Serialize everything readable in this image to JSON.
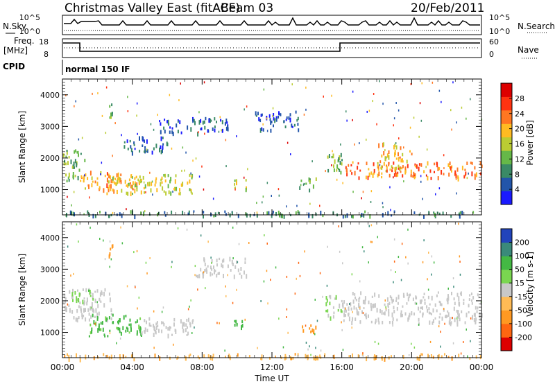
{
  "header": {
    "title": "Christmas Valley East (fitACF)",
    "beam": "Beam 03",
    "date": "20/Feb/2011"
  },
  "status_panels": {
    "nsky_label": "N.Sky",
    "nsearch_label": "N.Search",
    "noise_ticks": [
      "10^5",
      "10^0"
    ],
    "freq_label_line1": "Freq.",
    "freq_label_line2": "[MHz]",
    "freq_ticks": [
      "18",
      "8"
    ],
    "nave_label": "Nave",
    "nave_ticks": [
      "60",
      "0"
    ],
    "cpid_label": "CPID",
    "cpid_value": "normal 150 IF"
  },
  "colors": {
    "power_scale": [
      "#1a1aff",
      "#2255aa",
      "#3a8a66",
      "#66b848",
      "#bbcc33",
      "#ffbb22",
      "#ff7722",
      "#ff3311",
      "#dd0000"
    ],
    "velocity_scale": [
      "#dd0000",
      "#ff6611",
      "#ff9922",
      "#ffbb55",
      "#c8c8c8",
      "#7ad650",
      "#44b844",
      "#3a8a7a",
      "#2244bb"
    ]
  },
  "chart_data": [
    {
      "type": "heatmap",
      "parameter": "Power",
      "ylabel": "Slant Range [km]",
      "colorbar_label": "Power [dB]",
      "colorbar_ticks": [
        "28",
        "24",
        "20",
        "16",
        "12",
        "8",
        "4"
      ],
      "colorbar_range": [
        0,
        30
      ],
      "yticks": [
        "4000",
        "3000",
        "2000",
        "1000"
      ],
      "ylim": [
        200,
        4500
      ],
      "xlim_hours": [
        0,
        24
      ],
      "regions": [
        {
          "t0": 0.0,
          "t1": 1.3,
          "r0": 1300,
          "r1": 2300,
          "level": 12
        },
        {
          "t0": 1.0,
          "t1": 4.5,
          "r0": 1000,
          "r1": 1600,
          "level": 20
        },
        {
          "t0": 2.5,
          "t1": 7.5,
          "r0": 900,
          "r1": 1500,
          "level": 16
        },
        {
          "t0": 2.6,
          "t1": 2.9,
          "r0": 3300,
          "r1": 3800,
          "level": 12
        },
        {
          "t0": 3.5,
          "t1": 6.0,
          "r0": 2200,
          "r1": 2700,
          "level": 6
        },
        {
          "t0": 5.5,
          "t1": 9.5,
          "r0": 2800,
          "r1": 3300,
          "level": 5
        },
        {
          "t0": 9.8,
          "t1": 10.5,
          "r0": 1000,
          "r1": 1400,
          "level": 14
        },
        {
          "t0": 11.0,
          "t1": 13.5,
          "r0": 2900,
          "r1": 3500,
          "level": 5
        },
        {
          "t0": 13.5,
          "t1": 14.5,
          "r0": 1000,
          "r1": 1400,
          "level": 12
        },
        {
          "t0": 15.0,
          "t1": 16.0,
          "r0": 1500,
          "r1": 2200,
          "level": 12
        },
        {
          "t0": 16.2,
          "t1": 24.0,
          "r0": 1400,
          "r1": 1900,
          "level": 22
        },
        {
          "t0": 18.0,
          "t1": 20.0,
          "r0": 1700,
          "r1": 2500,
          "level": 18
        },
        {
          "t0": 0.0,
          "t1": 24.0,
          "r0": 200,
          "r1": 350,
          "level": 8
        }
      ]
    },
    {
      "type": "heatmap",
      "parameter": "Velocity",
      "ylabel": "Slant Range [km]",
      "colorbar_label": "Velocity [m s-1]",
      "colorbar_ticks": [
        "200",
        "100",
        "50",
        "15",
        "-15",
        "-50",
        "-100",
        "-200"
      ],
      "yticks": [
        "4000",
        "3000",
        "2000",
        "1000"
      ],
      "ylim": [
        200,
        4500
      ],
      "xlim_hours": [
        0,
        24
      ],
      "regions": [
        {
          "t0": 0.0,
          "t1": 2.8,
          "r0": 1400,
          "r1": 2400,
          "level": 0
        },
        {
          "t0": 0.5,
          "t1": 1.8,
          "r0": 2000,
          "r1": 2400,
          "level": 40
        },
        {
          "t0": 1.5,
          "t1": 4.5,
          "r0": 900,
          "r1": 1600,
          "level": 60
        },
        {
          "t0": 4.5,
          "t1": 7.5,
          "r0": 900,
          "r1": 1500,
          "level": 0
        },
        {
          "t0": 2.6,
          "t1": 2.9,
          "r0": 3300,
          "r1": 3800,
          "level": -60
        },
        {
          "t0": 9.8,
          "t1": 10.5,
          "r0": 1000,
          "r1": 1400,
          "level": 60
        },
        {
          "t0": 13.5,
          "t1": 14.5,
          "r0": 1000,
          "r1": 1300,
          "level": -60
        },
        {
          "t0": 7.5,
          "t1": 10.5,
          "r0": 2800,
          "r1": 3400,
          "level": 0
        },
        {
          "t0": 15.0,
          "t1": 16.0,
          "r0": 1500,
          "r1": 2200,
          "level": 20
        },
        {
          "t0": 16.0,
          "t1": 24.0,
          "r0": 1300,
          "r1": 2300,
          "level": 0
        },
        {
          "t0": 0.0,
          "t1": 24.0,
          "r0": 200,
          "r1": 350,
          "level": -40
        }
      ]
    }
  ],
  "xaxis": {
    "ticks": [
      "00:00",
      "04:00",
      "08:00",
      "12:00",
      "16:00",
      "20:00",
      "00:00"
    ],
    "label": "Time UT"
  }
}
